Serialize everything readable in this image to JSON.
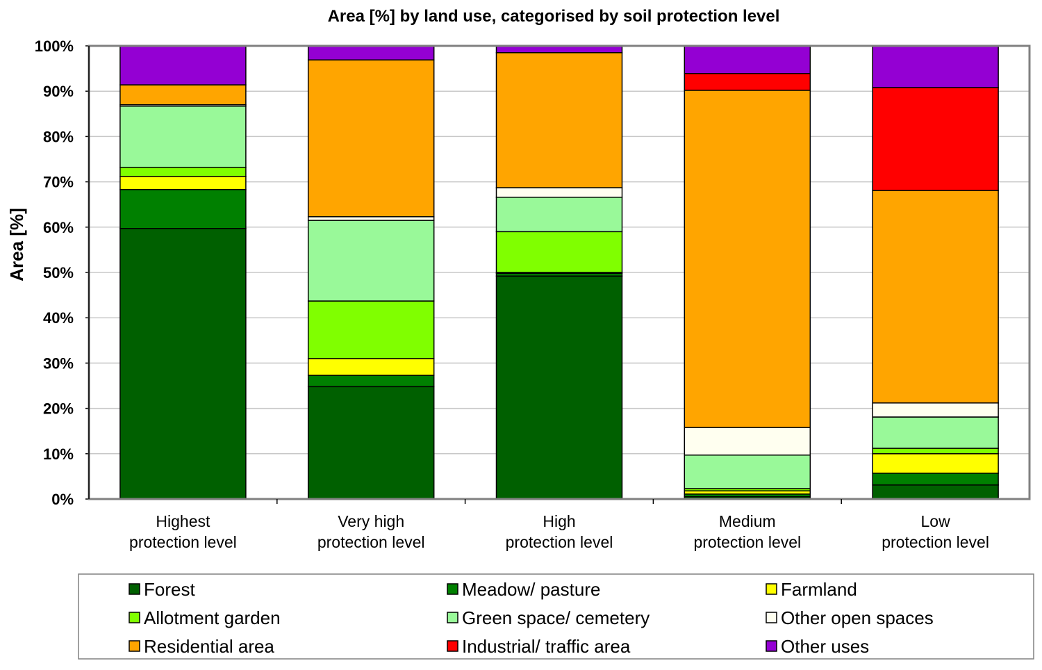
{
  "chart_data": {
    "type": "bar",
    "stacked": true,
    "title": "Area [%] by land use, categorised by soil protection level",
    "xlabel": "",
    "ylabel": "Area [%]",
    "ylim": [
      0,
      100
    ],
    "yticks": [
      "0%",
      "10%",
      "20%",
      "30%",
      "40%",
      "50%",
      "60%",
      "70%",
      "80%",
      "90%",
      "100%"
    ],
    "grid": true,
    "legend_placement": "bottom",
    "categories": [
      [
        "Highest",
        "protection level"
      ],
      [
        "Very high",
        "protection level"
      ],
      [
        "High",
        "protection level"
      ],
      [
        "Medium",
        "protection level"
      ],
      [
        "Low",
        "protection level"
      ]
    ],
    "series": [
      {
        "name": "Forest",
        "color": "#006000",
        "values": [
          59.7,
          24.8,
          49.2,
          0.5,
          3.1
        ]
      },
      {
        "name": "Meadow/ pasture",
        "color": "#008000",
        "values": [
          8.6,
          2.5,
          0.6,
          0.6,
          2.6
        ]
      },
      {
        "name": "Farmland",
        "color": "#ffff00",
        "values": [
          2.9,
          3.7,
          0.2,
          0.7,
          4.3
        ]
      },
      {
        "name": "Allotment garden",
        "color": "#80ff00",
        "values": [
          2.0,
          12.7,
          9.0,
          0.5,
          1.2
        ]
      },
      {
        "name": "Green space/ cemetery",
        "color": "#99f999",
        "values": [
          13.5,
          17.8,
          7.6,
          7.4,
          6.9
        ]
      },
      {
        "name": "Other open spaces",
        "color": "#fffff0",
        "values": [
          0.3,
          0.8,
          2.1,
          6.1,
          3.1
        ]
      },
      {
        "name": "Residential area",
        "color": "#ffa500",
        "values": [
          4.4,
          34.6,
          29.8,
          74.4,
          46.9
        ]
      },
      {
        "name": "Industrial/ traffic area",
        "color": "#ff0000",
        "values": [
          0,
          0,
          0,
          3.7,
          22.7
        ]
      },
      {
        "name": "Other uses",
        "color": "#9400d3",
        "values": [
          8.6,
          3.1,
          1.5,
          6.1,
          9.2
        ]
      }
    ]
  }
}
